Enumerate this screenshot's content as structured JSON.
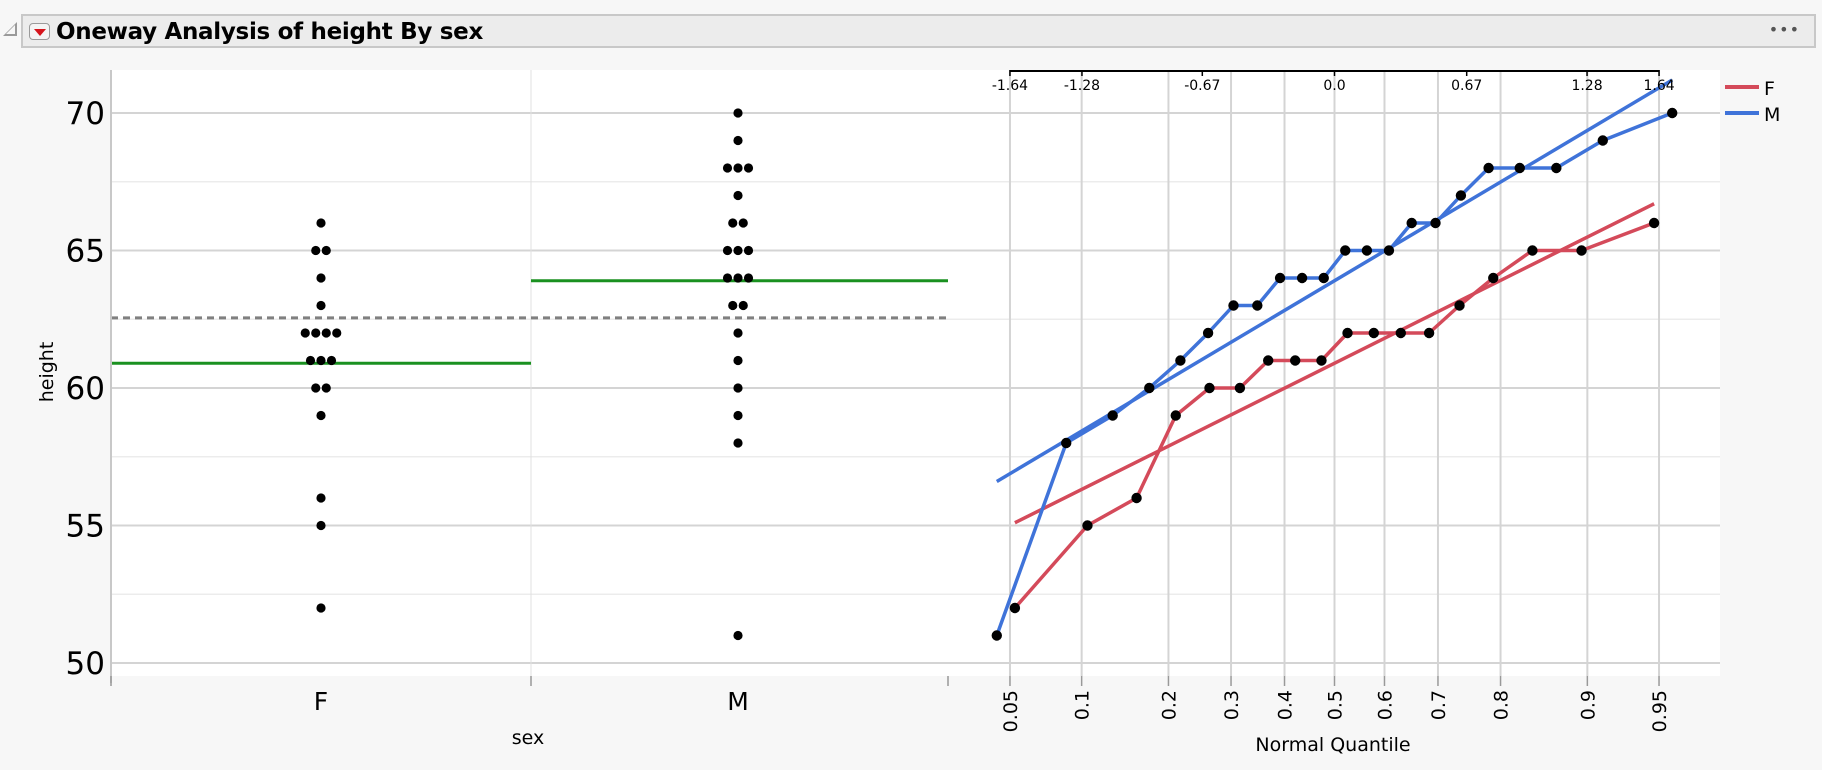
{
  "header": {
    "title": "Oneway Analysis of height By sex",
    "menu_icon": "red-triangle-menu",
    "more_icon": "ellipsis",
    "more_label": "•••"
  },
  "colors": {
    "F": "#d44a5a",
    "M": "#3f73d9",
    "mean_line": "#1a9120",
    "grand_mean": "#808080",
    "grid": "#d4d4d4",
    "plot_bg": "#ffffff"
  },
  "chart_data": [
    {
      "type": "scatter",
      "title": "Oneway Analysis of height By sex",
      "xlabel": "sex",
      "ylabel": "height",
      "categories": [
        "F",
        "M"
      ],
      "ylim": [
        50,
        72
      ],
      "yticks": [
        50,
        55,
        60,
        65,
        70
      ],
      "grid": true,
      "series": [
        {
          "name": "F",
          "values": [
            66,
            65,
            65,
            64,
            63,
            62,
            62,
            62,
            62,
            61,
            61,
            61,
            60,
            60,
            59,
            56,
            55,
            52
          ]
        },
        {
          "name": "M",
          "values": [
            70,
            69,
            68,
            68,
            68,
            67,
            66,
            66,
            65,
            65,
            65,
            64,
            64,
            64,
            63,
            63,
            62,
            61,
            60,
            59,
            58,
            51
          ]
        }
      ],
      "group_means": {
        "F": 60.9,
        "M": 63.9
      },
      "grand_mean": 62.55,
      "annotations": [
        "green lines = group means",
        "dashed line = grand mean"
      ]
    },
    {
      "type": "line",
      "title": "Normal Quantile Plot",
      "xlabel": "Normal Quantile",
      "ylabel": "height",
      "top_axis_ticks": [
        "-1.64",
        "-1.28",
        "-0.67",
        "0.0",
        "0.67",
        "1.28",
        "1.64"
      ],
      "bottom_axis_ticks": [
        "0.05",
        "0.1",
        "0.2",
        "0.3",
        "0.4",
        "0.5",
        "0.6",
        "0.7",
        "0.8",
        "0.9",
        "0.95"
      ],
      "legend": [
        "F",
        "M"
      ],
      "legend_position": "right",
      "series": [
        {
          "name": "F",
          "fit_line": {
            "y_at_z_min": 55.1,
            "y_at_z_max": 66.7
          }
        },
        {
          "name": "M",
          "fit_line": {
            "y_at_z_min": 56.6,
            "y_at_z_max": 71.2
          }
        }
      ]
    }
  ],
  "axes": {
    "y_label": "height",
    "y_ticks": [
      "50",
      "55",
      "60",
      "65",
      "70"
    ],
    "x_label": "sex",
    "x_ticks": [
      "F",
      "M"
    ],
    "nq_label": "Normal Quantile",
    "nq_top_ticks": [
      "-1.64",
      "-1.28",
      "-0.67",
      "0.0",
      "0.67",
      "1.28",
      "1.64"
    ],
    "nq_bottom_ticks": [
      "0.05",
      "0.1",
      "0.2",
      "0.3",
      "0.4",
      "0.5",
      "0.6",
      "0.7",
      "0.8",
      "0.9",
      "0.95"
    ]
  },
  "legend": {
    "items": [
      {
        "label": "F",
        "color": "#d44a5a"
      },
      {
        "label": "M",
        "color": "#3f73d9"
      }
    ]
  }
}
